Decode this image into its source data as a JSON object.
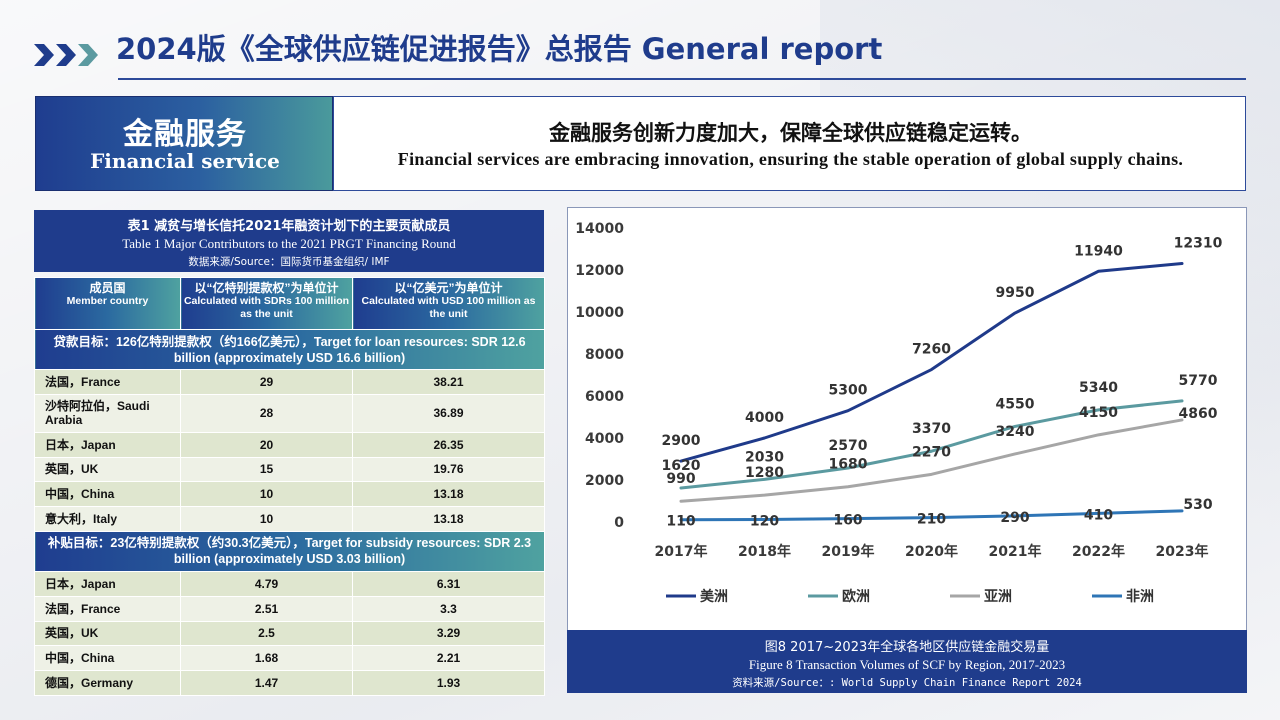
{
  "header": {
    "title": "2024版《全球供应链促进报告》总报告 General report"
  },
  "section": {
    "label_zh": "金融服务",
    "label_en": "Financial service",
    "tagline_zh": "金融服务创新力度加大，保障全球供应链稳定运转。",
    "tagline_en": "Financial services are embracing innovation, ensuring the stable operation of global supply chains."
  },
  "table": {
    "title_zh": "表1 减贫与增长信托2021年融资计划下的主要贡献成员",
    "title_en": "Table 1 Major Contributors to the 2021 PRGT Financing Round",
    "source": "数据来源/Source：国际货币基金组织/ IMF",
    "headers": [
      {
        "zh": "成员国",
        "en": "Member country"
      },
      {
        "zh": "以“亿特别提款权”为单位计",
        "en": "Calculated with SDRs 100 million as the unit"
      },
      {
        "zh": "以“亿美元”为单位计",
        "en": "Calculated with USD 100 million as the unit"
      }
    ],
    "loan_band": "贷款目标：126亿特别提款权（约166亿美元），Target for loan resources: SDR 12.6 billion (approximately USD 16.6 billion)",
    "loan_rows": [
      {
        "country": "法国，France",
        "sdr": "29",
        "usd": "38.21"
      },
      {
        "country": "沙特阿拉伯，Saudi Arabia",
        "sdr": "28",
        "usd": "36.89"
      },
      {
        "country": "日本，Japan",
        "sdr": "20",
        "usd": "26.35"
      },
      {
        "country": "英国，UK",
        "sdr": "15",
        "usd": "19.76"
      },
      {
        "country": "中国，China",
        "sdr": "10",
        "usd": "13.18"
      },
      {
        "country": "意大利，Italy",
        "sdr": "10",
        "usd": "13.18"
      }
    ],
    "subsidy_band": "补贴目标：23亿特别提款权（约30.3亿美元），Target for subsidy resources: SDR 2.3 billion (approximately USD 3.03 billion)",
    "subsidy_rows": [
      {
        "country": "日本，Japan",
        "sdr": "4.79",
        "usd": "6.31"
      },
      {
        "country": "法国，France",
        "sdr": "2.51",
        "usd": "3.3"
      },
      {
        "country": "英国，UK",
        "sdr": "2.5",
        "usd": "3.29"
      },
      {
        "country": "中国，China",
        "sdr": "1.68",
        "usd": "2.21"
      },
      {
        "country": "德国，Germany",
        "sdr": "1.47",
        "usd": "1.93"
      }
    ]
  },
  "caption": {
    "zh": "图8 2017~2023年全球各地区供应链金融交易量",
    "en": "Figure 8 Transaction Volumes of SCF by Region, 2017-2023",
    "source": "资料来源/Source：: World Supply Chain Finance Report 2024"
  },
  "chart_data": {
    "type": "line",
    "categories": [
      "2017年",
      "2018年",
      "2019年",
      "2020年",
      "2021年",
      "2022年",
      "2023年"
    ],
    "ylim": [
      0,
      14000
    ],
    "yticks": [
      0,
      2000,
      4000,
      6000,
      8000,
      10000,
      12000,
      14000
    ],
    "grid": false,
    "legend_position": "bottom",
    "series": [
      {
        "name": "美洲",
        "color": "#1f3a8a",
        "values": [
          2900,
          4000,
          5300,
          7260,
          9950,
          11940,
          12310
        ]
      },
      {
        "name": "欧洲",
        "color": "#5b9aa0",
        "values": [
          1620,
          2030,
          2570,
          3370,
          4550,
          5340,
          5770
        ]
      },
      {
        "name": "亚洲",
        "color": "#a6a6a6",
        "values": [
          990,
          1280,
          1680,
          2270,
          3240,
          4150,
          4860
        ]
      },
      {
        "name": "非洲",
        "color": "#2e75b6",
        "values": [
          110,
          120,
          160,
          210,
          290,
          410,
          530
        ]
      }
    ]
  }
}
